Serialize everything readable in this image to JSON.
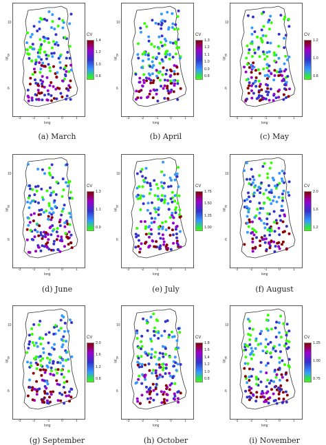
{
  "axis": {
    "xlabel": "long",
    "ylabel": "lat",
    "xticks": [
      "-3",
      "-2",
      "-1",
      "0",
      "1"
    ],
    "yticks": [
      "10",
      "8",
      "6"
    ]
  },
  "legend_title": "CV",
  "colors": {
    "low": "#33ff00",
    "mid_low": "#3399ff",
    "mid": "#3333cc",
    "mid_high": "#9900cc",
    "high": "#8b0000"
  },
  "panels": [
    {
      "caption": "(a) March",
      "ticks": [
        "1.4",
        "1.2",
        "1.0",
        "0.8"
      ]
    },
    {
      "caption": "(b) April",
      "ticks": [
        "1.3",
        "1.2",
        "1.1",
        "1.0",
        "0.9",
        "0.8"
      ]
    },
    {
      "caption": "(c) May",
      "ticks": [
        "1.2",
        "1.0",
        "0.8"
      ]
    },
    {
      "caption": "(d) June",
      "ticks": [
        "1.3",
        "1.1",
        "0.9"
      ]
    },
    {
      "caption": "(e) July",
      "ticks": [
        "1.75",
        "1.50",
        "1.25",
        "1.00"
      ]
    },
    {
      "caption": "(f) August",
      "ticks": [
        "2.0",
        "1.6",
        "1.2"
      ]
    },
    {
      "caption": "(g) September",
      "ticks": [
        "2.0",
        "1.6",
        "1.2",
        "0.8"
      ]
    },
    {
      "caption": "(h) October",
      "ticks": [
        "1.8",
        "1.6",
        "1.4",
        "1.2",
        "1.0",
        "0.8"
      ]
    },
    {
      "caption": "(i) November",
      "ticks": [
        "1.25",
        "1.00",
        "0.75"
      ]
    }
  ]
}
